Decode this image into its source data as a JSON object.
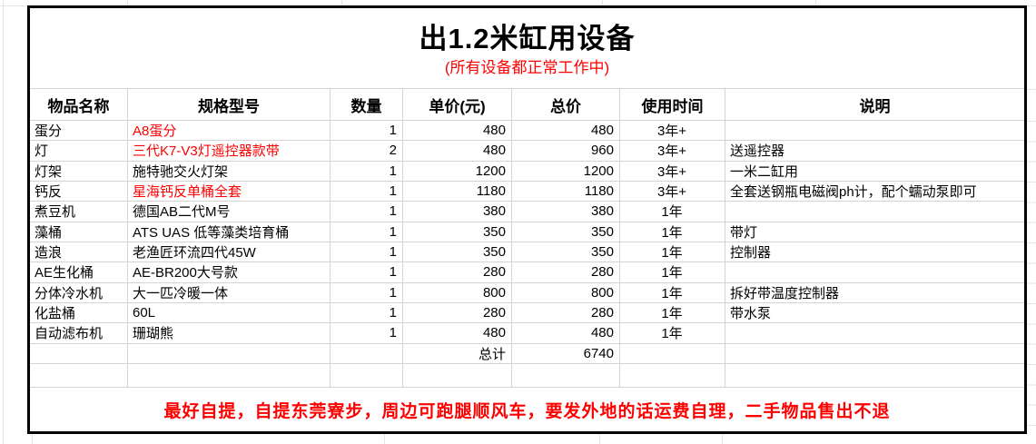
{
  "title": "出1.2米缸用设备",
  "subtitle": "(所有设备都正常工作中)",
  "footer_note": "最好自提，自提东莞寮步，周边可跑腿顺风车，要发外地的话运费自理，二手物品售出不退",
  "table": {
    "columns": [
      "物品名称",
      "规格型号",
      "数量",
      "单价(元)",
      "总价",
      "使用时间",
      "说明"
    ],
    "rows": [
      {
        "item": "蛋分",
        "spec": "A8蛋分",
        "spec_red": true,
        "qty": "1",
        "unit_price": "480",
        "total_price": "480",
        "usage": "3年+",
        "note": ""
      },
      {
        "item": "灯",
        "spec": "三代K7-V3灯遥控器款带",
        "spec_red": true,
        "qty": "2",
        "unit_price": "480",
        "total_price": "960",
        "usage": "3年+",
        "note": "送遥控器"
      },
      {
        "item": "灯架",
        "spec": "施特驰交火灯架",
        "spec_red": false,
        "qty": "1",
        "unit_price": "1200",
        "total_price": "1200",
        "usage": "3年+",
        "note": "一米二缸用"
      },
      {
        "item": "钙反",
        "spec": "星海钙反单桶全套",
        "spec_red": true,
        "qty": "1",
        "unit_price": "1180",
        "total_price": "1180",
        "usage": "3年+",
        "note": "全套送钢瓶电磁阀ph计，配个蠕动泵即可"
      },
      {
        "item": "煮豆机",
        "spec": "德国AB二代M号",
        "spec_red": false,
        "qty": "1",
        "unit_price": "380",
        "total_price": "380",
        "usage": "1年",
        "note": ""
      },
      {
        "item": "藻桶",
        "spec": "ATS UAS 低等藻类培育桶",
        "spec_red": false,
        "qty": "1",
        "unit_price": "350",
        "total_price": "350",
        "usage": "1年",
        "note": "带灯"
      },
      {
        "item": "造浪",
        "spec": "老渔匠环流四代45W",
        "spec_red": false,
        "qty": "1",
        "unit_price": "350",
        "total_price": "350",
        "usage": "1年",
        "note": "控制器"
      },
      {
        "item": "AE生化桶",
        "spec": "AE-BR200大号款",
        "spec_red": false,
        "qty": "1",
        "unit_price": "280",
        "total_price": "280",
        "usage": "1年",
        "note": ""
      },
      {
        "item": "分体冷水机",
        "spec": "大一匹冷暖一体",
        "spec_red": false,
        "qty": "1",
        "unit_price": "800",
        "total_price": "800",
        "usage": "1年",
        "note": "拆好带温度控制器"
      },
      {
        "item": "化盐桶",
        "spec": "60L",
        "spec_red": false,
        "qty": "1",
        "unit_price": "280",
        "total_price": "280",
        "usage": "1年",
        "note": "带水泵"
      },
      {
        "item": "自动滤布机",
        "spec": "珊瑚熊",
        "spec_red": false,
        "qty": "1",
        "unit_price": "480",
        "total_price": "480",
        "usage": "1年",
        "note": ""
      }
    ],
    "total_row": {
      "label": "总计",
      "value": "6740"
    }
  },
  "colors": {
    "accent_red": "#ff0000",
    "grid_line": "#d4d4d4",
    "table_border": "#000000"
  }
}
